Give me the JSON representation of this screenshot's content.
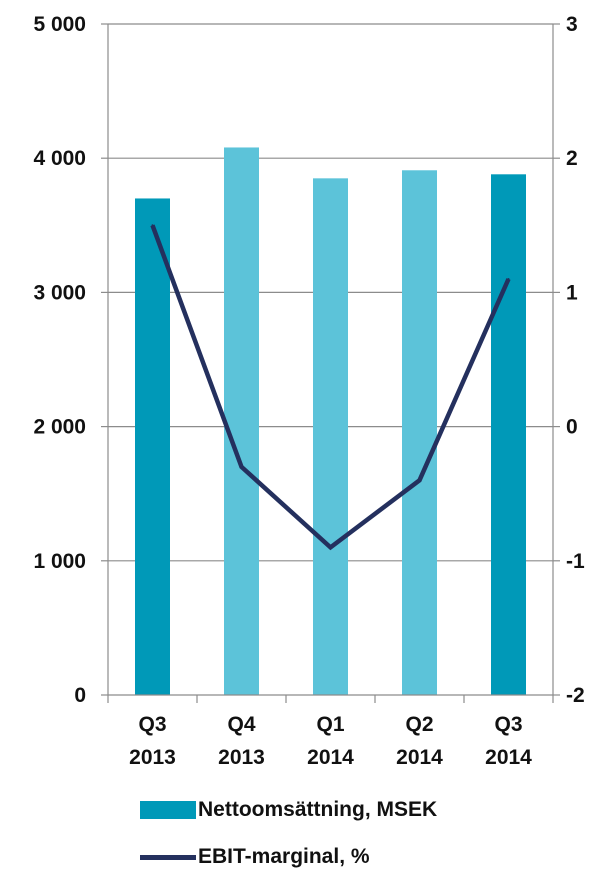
{
  "chart_data": {
    "type": "bar",
    "categories": [
      [
        "Q3",
        "2013"
      ],
      [
        "Q4",
        "2013"
      ],
      [
        "Q1",
        "2014"
      ],
      [
        "Q2",
        "2014"
      ],
      [
        "Q3",
        "2014"
      ]
    ],
    "bar_series": {
      "name": "Nettoomsättning, MSEK",
      "values": [
        3700,
        4080,
        3850,
        3910,
        3880
      ],
      "colors": [
        "#0099b8",
        "#5cc3d9",
        "#5cc3d9",
        "#5cc3d9",
        "#0099b8"
      ]
    },
    "line_series": {
      "name": "EBIT-marginal, %",
      "values": [
        1.5,
        -0.3,
        -0.9,
        -0.4,
        1.1
      ],
      "color": "#24305e"
    },
    "y_left": {
      "ylim": [
        0,
        5000
      ],
      "ticks": [
        0,
        1000,
        2000,
        3000,
        4000,
        5000
      ],
      "tick_labels": [
        "0",
        "1 000",
        "2 000",
        "3 000",
        "4 000",
        "5 000"
      ]
    },
    "y_right": {
      "ylim": [
        -2,
        3
      ],
      "ticks": [
        -2,
        -1,
        0,
        1,
        2,
        3
      ],
      "tick_labels": [
        "-2",
        "-1",
        "0",
        "1",
        "2",
        "3"
      ]
    },
    "grid": true,
    "legend_position": "bottom"
  }
}
